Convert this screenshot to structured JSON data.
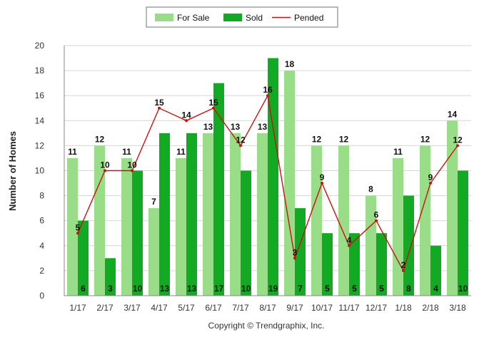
{
  "chart_data": {
    "type": "bar",
    "categories": [
      "1/17",
      "2/17",
      "3/17",
      "4/17",
      "5/17",
      "6/17",
      "7/17",
      "8/17",
      "9/17",
      "10/17",
      "11/17",
      "12/17",
      "1/18",
      "2/18",
      "3/18"
    ],
    "series": [
      {
        "name": "For Sale",
        "type": "bar",
        "color": "#99dd88",
        "values": [
          11,
          12,
          11,
          7,
          11,
          13,
          13,
          13,
          18,
          12,
          12,
          8,
          11,
          12,
          14
        ]
      },
      {
        "name": "Sold",
        "type": "bar",
        "color": "#11aa22",
        "values": [
          6,
          3,
          10,
          13,
          13,
          17,
          10,
          19,
          7,
          5,
          5,
          5,
          8,
          4,
          10
        ]
      },
      {
        "name": "Pended",
        "type": "line",
        "color": "#cc1111",
        "values": [
          5,
          10,
          10,
          15,
          14,
          15,
          12,
          16,
          3,
          9,
          4,
          6,
          2,
          9,
          12
        ]
      }
    ],
    "ylabel": "Number of Homes",
    "ylim": [
      0,
      20
    ],
    "yticks": [
      0,
      2,
      4,
      6,
      8,
      10,
      12,
      14,
      16,
      18,
      20
    ],
    "grid": true,
    "legend_position": "top-center"
  },
  "footer": {
    "copyright": "Copyright © Trendgraphix, Inc."
  }
}
